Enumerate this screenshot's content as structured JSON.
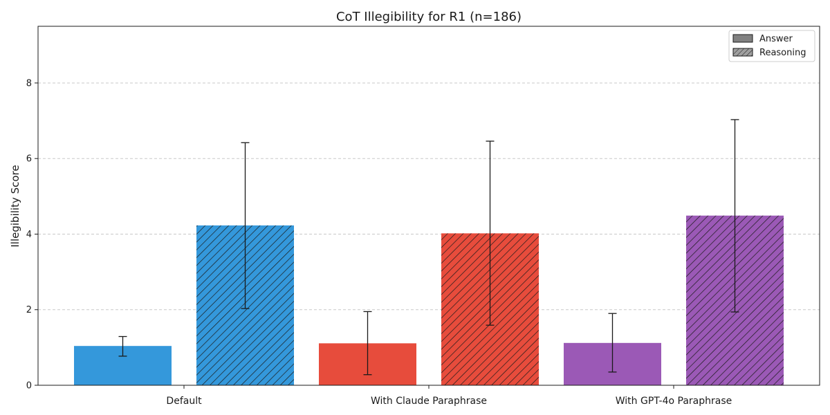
{
  "chart_data": {
    "type": "bar",
    "title": "CoT Illegibility for R1 (n=186)",
    "xlabel": "",
    "ylabel": "Illegibility Score",
    "ylim": [
      0,
      9.5
    ],
    "yticks": [
      0,
      2,
      4,
      6,
      8
    ],
    "grid": "y-dashed",
    "legend_position": "top-right",
    "categories": [
      "Default",
      "With Claude Paraphrase",
      "With GPT-4o Paraphrase"
    ],
    "category_colors": [
      "#3498db",
      "#e74c3c",
      "#9b59b6"
    ],
    "series": [
      {
        "name": "Answer",
        "pattern": "solid",
        "values": [
          1.04,
          1.11,
          1.12
        ],
        "error_low": [
          0.77,
          0.28,
          0.35
        ],
        "error_high": [
          1.29,
          1.95,
          1.9
        ]
      },
      {
        "name": "Reasoning",
        "pattern": "hatched",
        "values": [
          4.23,
          4.02,
          4.49
        ],
        "error_low": [
          2.03,
          1.59,
          1.94
        ],
        "error_high": [
          6.42,
          6.46,
          7.03
        ]
      }
    ],
    "legend_swatch_colors": [
      "#808080",
      "#a0a0a0"
    ]
  }
}
